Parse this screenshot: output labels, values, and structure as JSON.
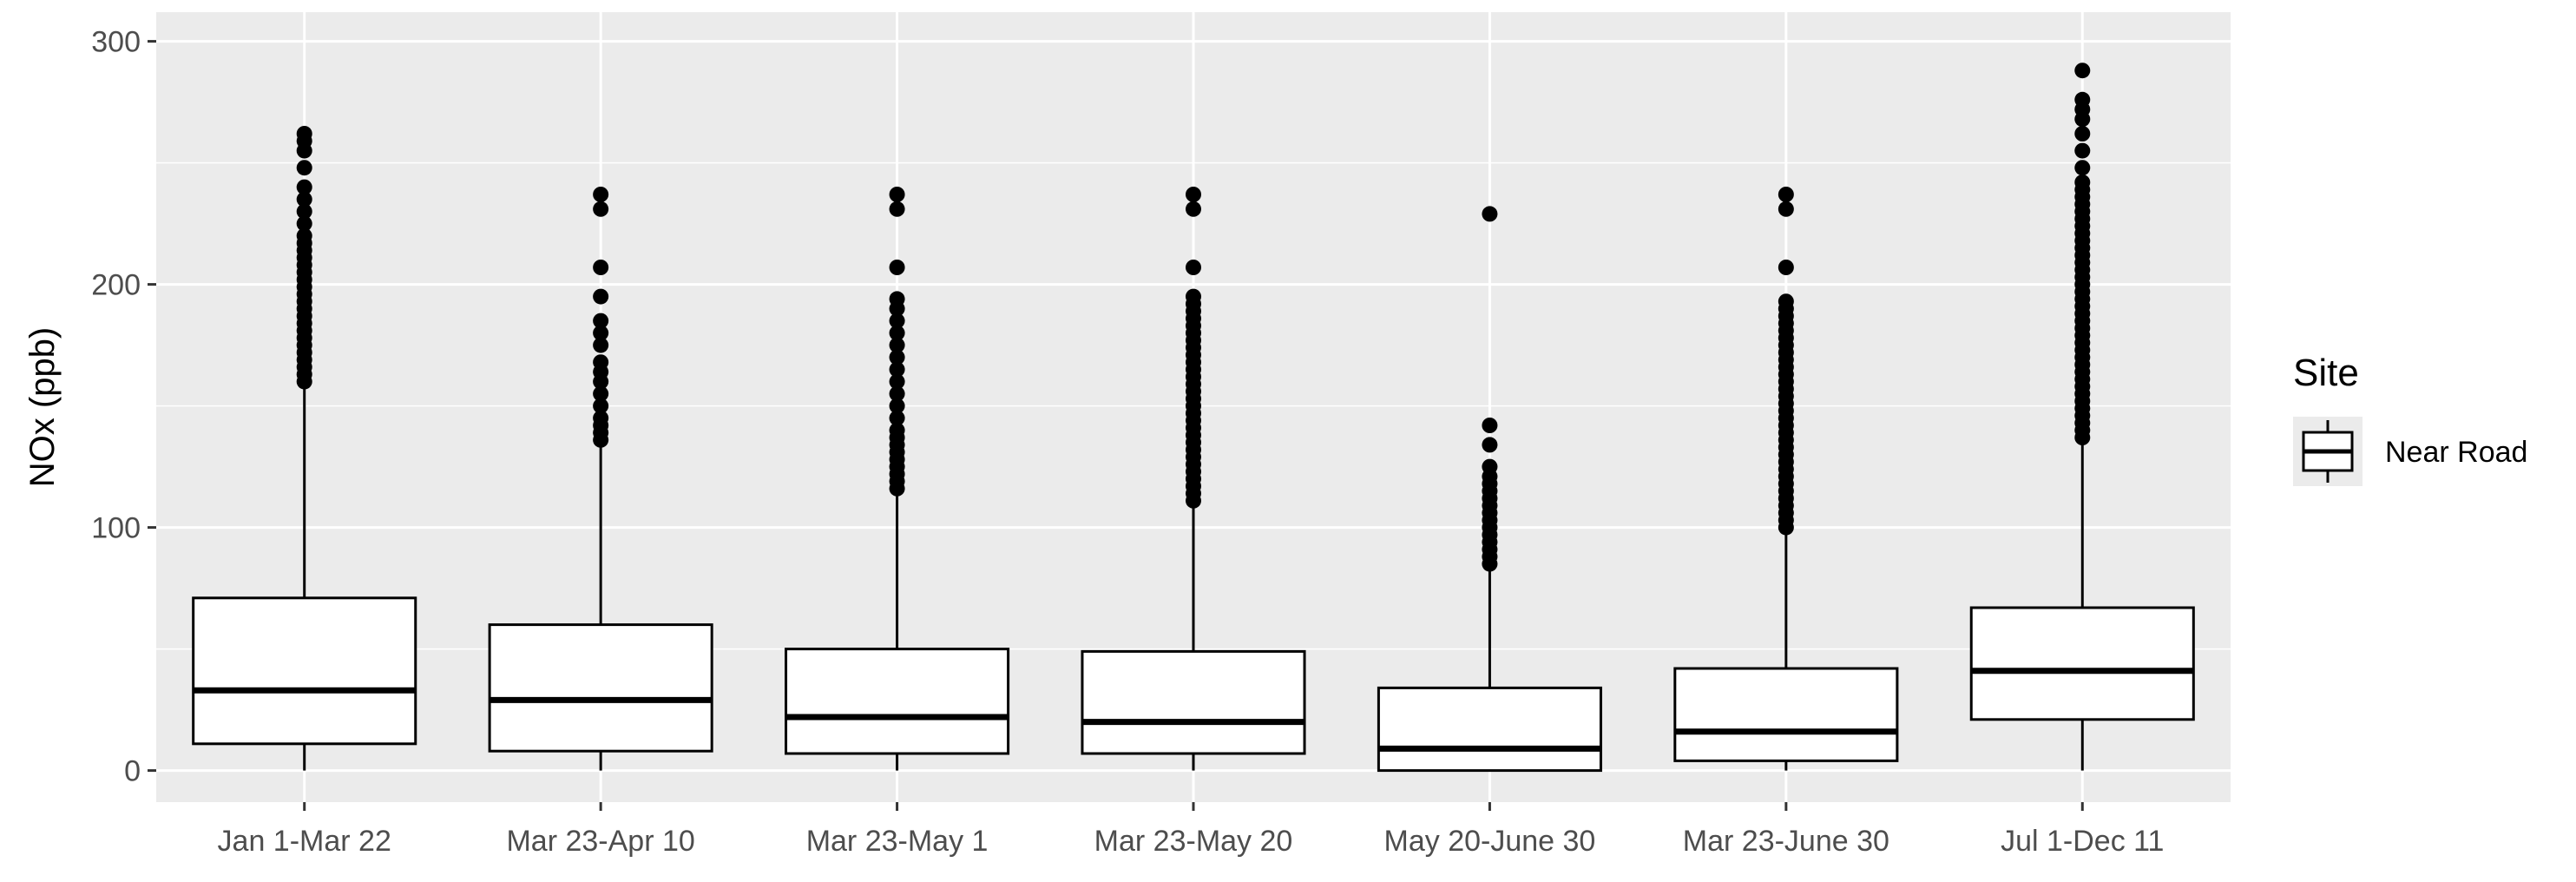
{
  "chart_data": {
    "type": "box",
    "ylabel": "NOx (ppb)",
    "xlabel": "",
    "ylim": [
      -13,
      312
    ],
    "yticks": [
      0,
      100,
      200,
      300
    ],
    "grid": true,
    "legend": {
      "title": "Site",
      "entries": [
        "Near Road"
      ],
      "position": "right"
    },
    "colors": {
      "panel": "#ebebeb",
      "grid": "#ffffff",
      "box_fill": "#ffffff",
      "stroke": "#000000"
    },
    "categories": [
      "Jan 1-Mar 22",
      "Mar 23-Apr 10",
      "Mar 23-May 1",
      "Mar 23-May 20",
      "May 20-June 30",
      "Mar 23-June 30",
      "Jul 1-Dec 11"
    ],
    "series": [
      {
        "name": "Near Road",
        "boxes": [
          {
            "min": 0,
            "q1": 11,
            "median": 33,
            "q3": 71,
            "whisker_high": 158,
            "outliers": [
              160,
              163,
              166,
              169,
              172,
              175,
              178,
              181,
              184,
              187,
              190,
              193,
              196,
              199,
              202,
              205,
              208,
              211,
              214,
              217,
              220,
              225,
              230,
              235,
              240,
              248,
              255,
              259,
              262
            ]
          },
          {
            "min": 0,
            "q1": 8,
            "median": 29,
            "q3": 60,
            "whisker_high": 134,
            "outliers": [
              136,
              139,
              142,
              145,
              150,
              155,
              160,
              164,
              168,
              175,
              180,
              185,
              195,
              207,
              231,
              237
            ]
          },
          {
            "min": 0,
            "q1": 7,
            "median": 22,
            "q3": 50,
            "whisker_high": 114,
            "outliers": [
              116,
              119,
              122,
              125,
              128,
              131,
              134,
              137,
              140,
              145,
              150,
              155,
              160,
              165,
              170,
              175,
              180,
              185,
              190,
              194,
              207,
              231,
              237
            ]
          },
          {
            "min": 0,
            "q1": 7,
            "median": 20,
            "q3": 49,
            "whisker_high": 109,
            "outliers": [
              111,
              114,
              117,
              120,
              123,
              126,
              129,
              132,
              135,
              138,
              141,
              144,
              147,
              150,
              153,
              156,
              159,
              162,
              165,
              168,
              171,
              174,
              177,
              180,
              183,
              186,
              189,
              192,
              195,
              207,
              231,
              237
            ]
          },
          {
            "min": 0,
            "q1": 0,
            "median": 9,
            "q3": 34,
            "whisker_high": 83,
            "outliers": [
              85,
              88,
              91,
              94,
              97,
              100,
              103,
              106,
              109,
              112,
              115,
              118,
              121,
              125,
              134,
              142,
              229
            ]
          },
          {
            "min": 0,
            "q1": 4,
            "median": 16,
            "q3": 42,
            "whisker_high": 98,
            "outliers": [
              100,
              103,
              106,
              109,
              112,
              115,
              118,
              121,
              124,
              127,
              130,
              133,
              136,
              139,
              142,
              145,
              148,
              151,
              154,
              157,
              160,
              163,
              166,
              169,
              172,
              175,
              178,
              181,
              184,
              187,
              190,
              193,
              207,
              231,
              237
            ]
          },
          {
            "min": 0,
            "q1": 21,
            "median": 41,
            "q3": 67,
            "whisker_high": 135,
            "outliers": [
              137,
              140,
              143,
              146,
              149,
              152,
              155,
              158,
              161,
              164,
              167,
              170,
              173,
              176,
              179,
              182,
              185,
              188,
              191,
              194,
              197,
              200,
              203,
              206,
              209,
              212,
              215,
              218,
              221,
              224,
              227,
              230,
              233,
              236,
              239,
              242,
              248,
              255,
              262,
              268,
              272,
              276,
              288
            ]
          }
        ]
      }
    ]
  }
}
